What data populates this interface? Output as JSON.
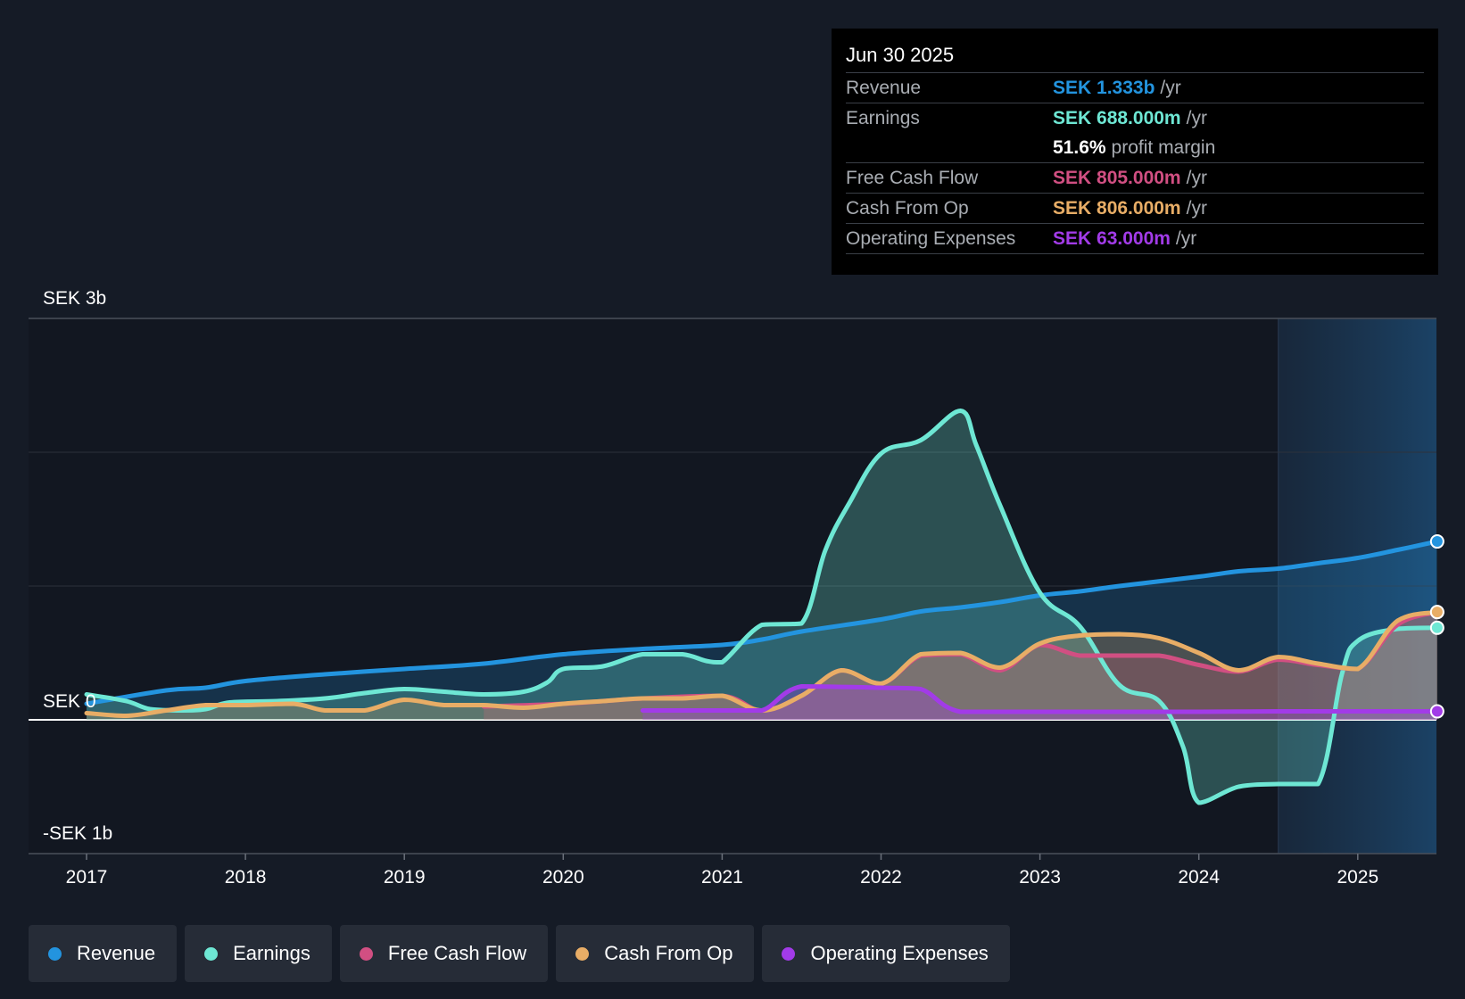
{
  "tooltip": {
    "date": "Jun 30 2025",
    "rows": [
      {
        "label": "Revenue",
        "value": "SEK 1.333b",
        "unit": "/yr",
        "color": "#2394df"
      },
      {
        "label": "Earnings",
        "value": "SEK 688.000m",
        "unit": "/yr",
        "color": "#6ee7d4"
      },
      {
        "label": "",
        "value": "51.6%",
        "unit": "profit margin",
        "color": "#ffffff"
      },
      {
        "label": "Free Cash Flow",
        "value": "SEK 805.000m",
        "unit": "/yr",
        "color": "#d14f82"
      },
      {
        "label": "Cash From Op",
        "value": "SEK 806.000m",
        "unit": "/yr",
        "color": "#e8ad66"
      },
      {
        "label": "Operating Expenses",
        "value": "SEK 63.000m",
        "unit": "/yr",
        "color": "#a23be8"
      }
    ]
  },
  "legend": [
    {
      "label": "Revenue",
      "color": "#2394df"
    },
    {
      "label": "Earnings",
      "color": "#6ee7d4"
    },
    {
      "label": "Free Cash Flow",
      "color": "#d14f82"
    },
    {
      "label": "Cash From Op",
      "color": "#e8ad66"
    },
    {
      "label": "Operating Expenses",
      "color": "#a23be8"
    }
  ],
  "chart_data": {
    "type": "line",
    "title": "",
    "xlabel": "",
    "ylabel": "",
    "ylim": [
      -1,
      3
    ],
    "y_unit": "SEK billions",
    "y_tick_labels": [
      {
        "value": 3,
        "label": "SEK 3b"
      },
      {
        "value": 0,
        "label": "SEK 0"
      },
      {
        "value": -1,
        "label": "-SEK 1b"
      }
    ],
    "xlim": [
      2017,
      2025.5
    ],
    "x_ticks": [
      2017,
      2018,
      2019,
      2020,
      2021,
      2022,
      2023,
      2024,
      2025
    ],
    "x_tick_labels": [
      "2017",
      "2018",
      "2019",
      "2020",
      "2021",
      "2022",
      "2023",
      "2024",
      "2025"
    ],
    "forecast_start": 2024.5,
    "series": [
      {
        "name": "Revenue",
        "color": "#2394df",
        "points": [
          [
            2017,
            0.12
          ],
          [
            2017.5,
            0.22
          ],
          [
            2017.75,
            0.24
          ],
          [
            2018,
            0.29
          ],
          [
            2018.5,
            0.34
          ],
          [
            2019,
            0.38
          ],
          [
            2019.5,
            0.42
          ],
          [
            2020,
            0.49
          ],
          [
            2020.5,
            0.53
          ],
          [
            2021,
            0.56
          ],
          [
            2021.25,
            0.6
          ],
          [
            2021.5,
            0.66
          ],
          [
            2022,
            0.75
          ],
          [
            2022.25,
            0.81
          ],
          [
            2022.5,
            0.84
          ],
          [
            2022.75,
            0.88
          ],
          [
            2023,
            0.93
          ],
          [
            2023.25,
            0.96
          ],
          [
            2023.5,
            1.0
          ],
          [
            2024,
            1.07
          ],
          [
            2024.25,
            1.11
          ],
          [
            2024.5,
            1.13
          ],
          [
            2024.75,
            1.17
          ],
          [
            2025,
            1.21
          ],
          [
            2025.25,
            1.27
          ],
          [
            2025.5,
            1.333
          ]
        ]
      },
      {
        "name": "Earnings",
        "color": "#6ee7d4",
        "points": [
          [
            2017,
            0.19
          ],
          [
            2017.25,
            0.14
          ],
          [
            2017.4,
            0.08
          ],
          [
            2017.6,
            0.07
          ],
          [
            2017.75,
            0.08
          ],
          [
            2017.9,
            0.13
          ],
          [
            2018.2,
            0.14
          ],
          [
            2018.5,
            0.16
          ],
          [
            2018.75,
            0.2
          ],
          [
            2019,
            0.23
          ],
          [
            2019.25,
            0.21
          ],
          [
            2019.5,
            0.19
          ],
          [
            2019.75,
            0.21
          ],
          [
            2019.9,
            0.28
          ],
          [
            2020,
            0.38
          ],
          [
            2020.25,
            0.4
          ],
          [
            2020.5,
            0.49
          ],
          [
            2020.75,
            0.49
          ],
          [
            2020.9,
            0.44
          ],
          [
            2021,
            0.43
          ],
          [
            2021.25,
            0.71
          ],
          [
            2021.5,
            0.72
          ],
          [
            2021.65,
            1.27
          ],
          [
            2021.8,
            1.62
          ],
          [
            2022,
            1.99
          ],
          [
            2022.25,
            2.09
          ],
          [
            2022.5,
            2.31
          ],
          [
            2022.6,
            2.05
          ],
          [
            2022.75,
            1.6
          ],
          [
            2023,
            0.95
          ],
          [
            2023.25,
            0.7
          ],
          [
            2023.5,
            0.26
          ],
          [
            2023.75,
            0.14
          ],
          [
            2023.9,
            -0.2
          ],
          [
            2024,
            -0.62
          ],
          [
            2024.25,
            -0.5
          ],
          [
            2024.5,
            -0.48
          ],
          [
            2024.75,
            -0.48
          ],
          [
            2024.9,
            0.34
          ],
          [
            2025,
            0.59
          ],
          [
            2025.25,
            0.68
          ],
          [
            2025.5,
            0.688
          ]
        ]
      },
      {
        "name": "Free Cash Flow",
        "color": "#d14f82",
        "points": [
          [
            2019.5,
            0.1
          ],
          [
            2020,
            0.12
          ],
          [
            2020.5,
            0.16
          ],
          [
            2021,
            0.18
          ],
          [
            2021.25,
            0.07
          ],
          [
            2021.5,
            0.18
          ],
          [
            2021.75,
            0.37
          ],
          [
            2022,
            0.27
          ],
          [
            2022.25,
            0.48
          ],
          [
            2022.5,
            0.49
          ],
          [
            2022.75,
            0.37
          ],
          [
            2023,
            0.56
          ],
          [
            2023.25,
            0.48
          ],
          [
            2023.5,
            0.48
          ],
          [
            2023.75,
            0.48
          ],
          [
            2024,
            0.41
          ],
          [
            2024.25,
            0.36
          ],
          [
            2024.5,
            0.45
          ],
          [
            2024.75,
            0.41
          ],
          [
            2025,
            0.38
          ],
          [
            2025.25,
            0.71
          ],
          [
            2025.5,
            0.805
          ]
        ]
      },
      {
        "name": "Cash From Op",
        "color": "#e8ad66",
        "points": [
          [
            2017,
            0.05
          ],
          [
            2017.25,
            0.03
          ],
          [
            2017.5,
            0.07
          ],
          [
            2017.75,
            0.11
          ],
          [
            2018,
            0.11
          ],
          [
            2018.3,
            0.12
          ],
          [
            2018.5,
            0.07
          ],
          [
            2018.75,
            0.07
          ],
          [
            2019,
            0.15
          ],
          [
            2019.25,
            0.11
          ],
          [
            2019.5,
            0.11
          ],
          [
            2019.75,
            0.09
          ],
          [
            2020,
            0.12
          ],
          [
            2020.25,
            0.14
          ],
          [
            2020.5,
            0.16
          ],
          [
            2020.75,
            0.16
          ],
          [
            2021,
            0.18
          ],
          [
            2021.25,
            0.07
          ],
          [
            2021.5,
            0.18
          ],
          [
            2021.75,
            0.37
          ],
          [
            2022,
            0.27
          ],
          [
            2022.25,
            0.49
          ],
          [
            2022.5,
            0.5
          ],
          [
            2022.75,
            0.39
          ],
          [
            2023,
            0.57
          ],
          [
            2023.25,
            0.63
          ],
          [
            2023.5,
            0.64
          ],
          [
            2023.75,
            0.61
          ],
          [
            2024,
            0.5
          ],
          [
            2024.25,
            0.37
          ],
          [
            2024.5,
            0.47
          ],
          [
            2024.75,
            0.42
          ],
          [
            2025,
            0.38
          ],
          [
            2025.25,
            0.74
          ],
          [
            2025.5,
            0.806
          ]
        ]
      },
      {
        "name": "Operating Expenses",
        "color": "#a23be8",
        "points": [
          [
            2020.5,
            0.07
          ],
          [
            2021,
            0.07
          ],
          [
            2021.25,
            0.07
          ],
          [
            2021.5,
            0.25
          ],
          [
            2022,
            0.24
          ],
          [
            2022.25,
            0.23
          ],
          [
            2022.5,
            0.06
          ],
          [
            2023,
            0.06
          ],
          [
            2023.5,
            0.06
          ],
          [
            2024,
            0.06
          ],
          [
            2024.5,
            0.063
          ],
          [
            2025,
            0.063
          ],
          [
            2025.5,
            0.063
          ]
        ]
      }
    ]
  }
}
